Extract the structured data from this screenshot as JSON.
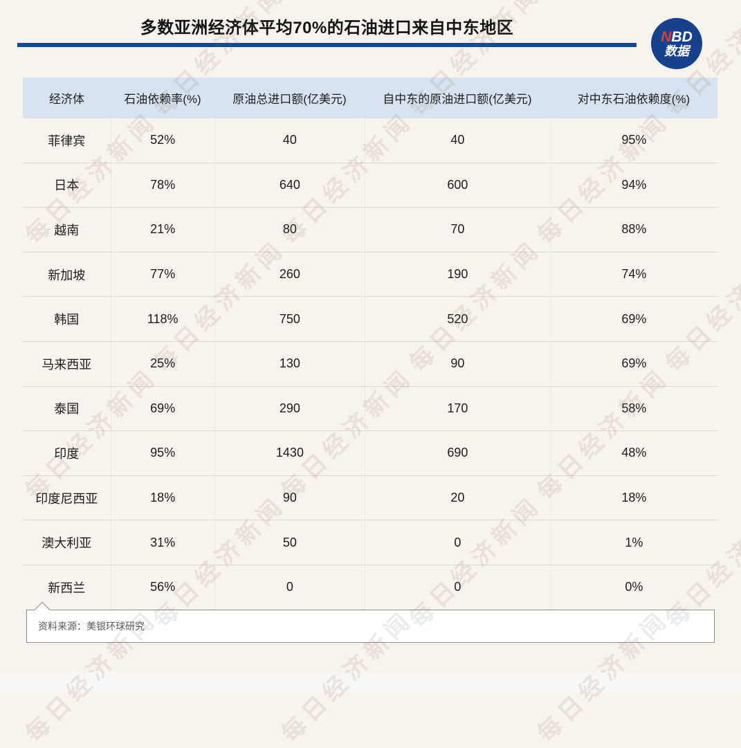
{
  "header": {
    "title": "多数亚洲经济体平均70%的石油进口来自中东地区",
    "logo": {
      "line1_n": "N",
      "line1_rest": "BD",
      "line2": "数据"
    }
  },
  "chart_data": {
    "type": "table",
    "title": "多数亚洲经济体平均70%的石油进口来自中东地区",
    "columns": [
      "经济体",
      "石油依赖率(%)",
      "原油总进口额(亿美元)",
      "自中东的原油进口额(亿美元)",
      "对中东石油依赖度(%)"
    ],
    "rows": [
      [
        "菲律宾",
        "52%",
        "40",
        "40",
        "95%"
      ],
      [
        "日本",
        "78%",
        "640",
        "600",
        "94%"
      ],
      [
        "越南",
        "21%",
        "80",
        "70",
        "88%"
      ],
      [
        "新加坡",
        "77%",
        "260",
        "190",
        "74%"
      ],
      [
        "韩国",
        "118%",
        "750",
        "520",
        "69%"
      ],
      [
        "马来西亚",
        "25%",
        "130",
        "90",
        "69%"
      ],
      [
        "泰国",
        "69%",
        "290",
        "170",
        "58%"
      ],
      [
        "印度",
        "95%",
        "1430",
        "690",
        "48%"
      ],
      [
        "印度尼西亚",
        "18%",
        "90",
        "20",
        "18%"
      ],
      [
        "澳大利亚",
        "31%",
        "50",
        "0",
        "1%"
      ],
      [
        "新西兰",
        "56%",
        "0",
        "0",
        "0%"
      ]
    ],
    "source": "资料来源：美银环球研究"
  },
  "source": {
    "label": "资料来源：美银环球研究"
  },
  "watermark": {
    "text": "每日经济新闻"
  },
  "colors": {
    "background": "#f7f3ec",
    "accent_blue": "#0b4a9f",
    "logo_blue": "#17418c",
    "logo_red": "#e23b2e",
    "table_header_bg": "#d7e3f0",
    "row_divider": "#ddd8d1",
    "text": "#1c1c1c",
    "source_text": "#5a5a5a",
    "footer_strip": "#f8f5f5"
  }
}
